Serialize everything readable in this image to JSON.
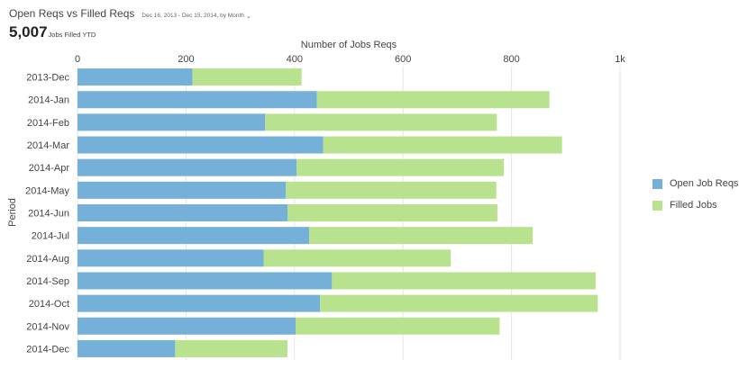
{
  "header": {
    "title": "Open Reqs vs Filled Reqs",
    "date_range": "Dec 16, 2013 - Dec 15, 2014, by Month",
    "chevron_icon": "chevron-down-icon",
    "kpi_value": "5,007",
    "kpi_label": "Jobs Filled YTD"
  },
  "colors": {
    "open": "#74b0d8",
    "filled": "#b9e28f"
  },
  "chart_data": {
    "type": "bar",
    "orientation": "horizontal",
    "stacked": true,
    "xlabel": "Number of Jobs Reqs",
    "ylabel": "Period",
    "xlim": [
      0,
      1000
    ],
    "x_ticks": [
      "0",
      "200",
      "400",
      "600",
      "800",
      "1k"
    ],
    "grid": true,
    "legend_position": "right",
    "categories": [
      "2013-Dec",
      "2014-Jan",
      "2014-Feb",
      "2014-Mar",
      "2014-Apr",
      "2014-May",
      "2014-Jun",
      "2014-Jul",
      "2014-Aug",
      "2014-Sep",
      "2014-Oct",
      "2014-Nov",
      "2014-Dec"
    ],
    "series": [
      {
        "name": "Open Job Reqs",
        "values": [
          212,
          441,
          346,
          453,
          404,
          384,
          387,
          427,
          343,
          469,
          447,
          402,
          180
        ]
      },
      {
        "name": "Filled Jobs",
        "values": [
          201,
          429,
          427,
          440,
          382,
          388,
          387,
          412,
          345,
          486,
          512,
          376,
          207
        ]
      }
    ]
  }
}
